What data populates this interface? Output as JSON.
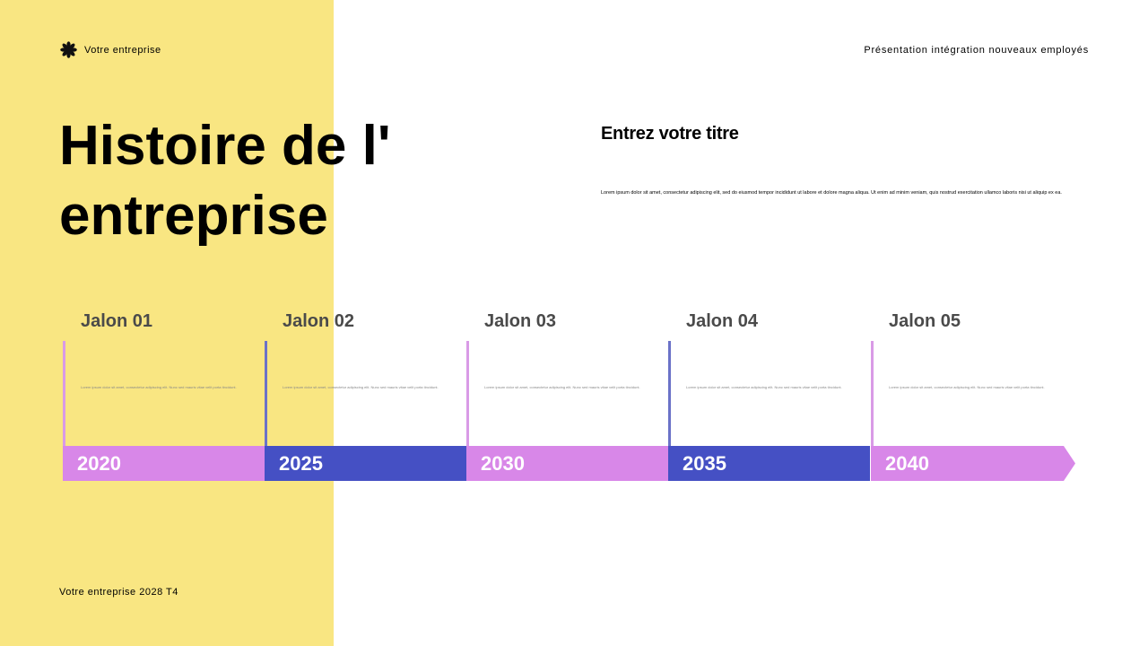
{
  "header": {
    "company": "Votre entreprise",
    "presentation": "Présentation intégration nouveaux employés"
  },
  "title": "Histoire de l' entreprise",
  "section": {
    "heading": "Entrez votre titre",
    "body": "Lorem ipsum dolor sit amet, consectetur adipiscing elit, sed do eiusmod tempor incididunt ut labore et dolore magna aliqua. Ut enim ad minim veniam, quis nostrud exercitation ullamco laboris nisi ut aliquip ex ea."
  },
  "footer": "Votre entreprise 2028 T4",
  "colors": {
    "yellow": "#f9e682",
    "pink": "#d887e8",
    "blue": "#4550c4"
  },
  "milestones": [
    {
      "label": "Jalon 01",
      "year": "2020",
      "text": "Lorem ipsum dolor sit amet, consectetur adipiscing elit. Nunc sed mauris vitae velit porta tincidunt."
    },
    {
      "label": "Jalon 02",
      "year": "2025",
      "text": "Lorem ipsum dolor sit amet, consectetur adipiscing elit. Nunc sed mauris vitae velit porta tincidunt."
    },
    {
      "label": "Jalon 03",
      "year": "2030",
      "text": "Lorem ipsum dolor sit amet, consectetur adipiscing elit. Nunc sed mauris vitae velit porta tincidunt."
    },
    {
      "label": "Jalon 04",
      "year": "2035",
      "text": "Lorem ipsum dolor sit amet, consectetur adipiscing elit. Nunc sed mauris vitae velit porta tincidunt."
    },
    {
      "label": "Jalon 05",
      "year": "2040",
      "text": "Lorem ipsum dolor sit amet, consectetur adipiscing elit. Nunc sed mauris vitae velit porta tincidunt."
    }
  ]
}
